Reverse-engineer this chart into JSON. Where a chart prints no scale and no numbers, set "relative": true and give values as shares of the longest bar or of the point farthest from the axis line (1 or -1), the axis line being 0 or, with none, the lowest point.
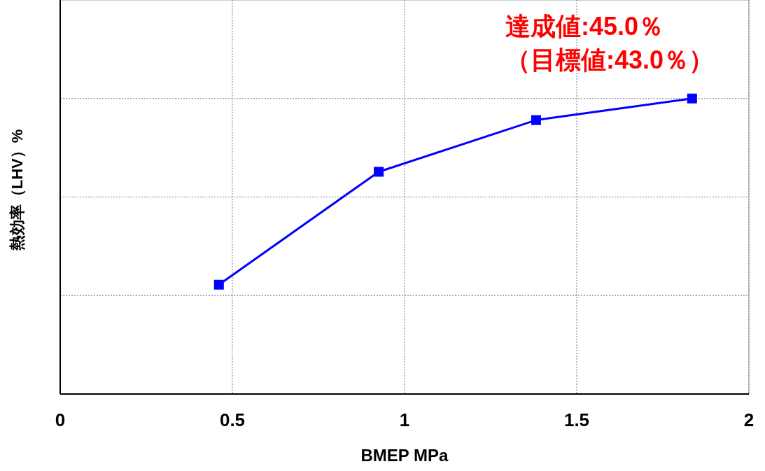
{
  "chart_data": {
    "type": "line",
    "xlabel": "BMEP MPa",
    "ylabel": "熱効率（LHV）%",
    "relative": true,
    "x": [
      0.461,
      0.925,
      1.382,
      1.835
    ],
    "series": [
      {
        "color": "#0000ff",
        "values": [
          0.37,
          0.752,
          0.927,
          1
        ]
      }
    ],
    "xlim": [
      0,
      2
    ],
    "xticks": [
      0,
      0.5,
      1,
      1.5,
      2
    ],
    "grid": true,
    "marker": "square",
    "line_style": "solid",
    "annotations": [
      "達成値:45.0％",
      "（目標値:43.0％）"
    ]
  }
}
